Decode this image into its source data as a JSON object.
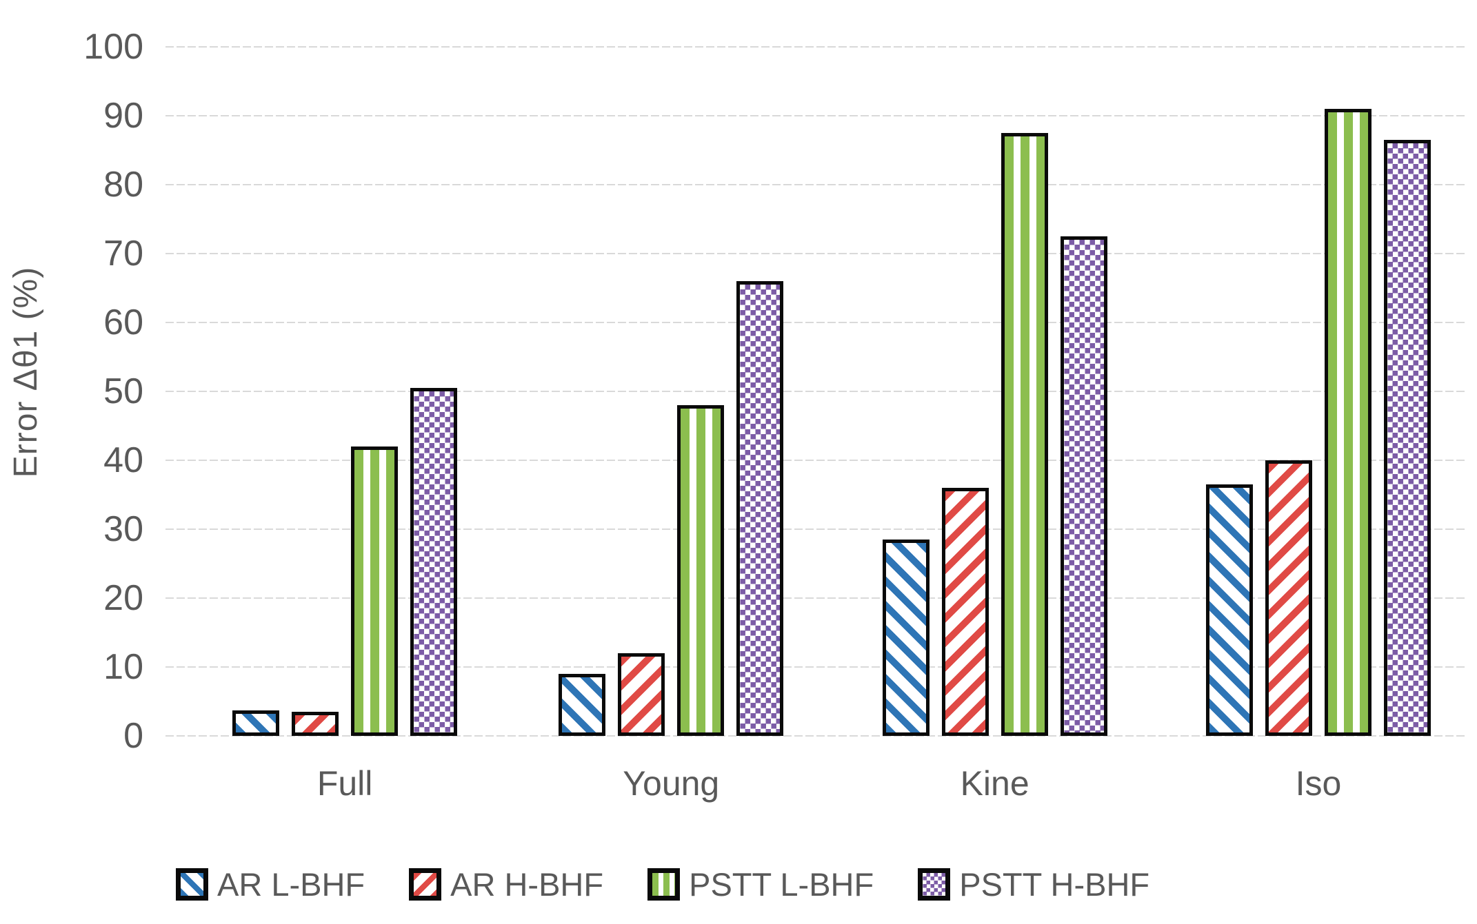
{
  "chart_data": {
    "type": "bar",
    "title": "",
    "ylabel": "Error Δθ1 (%)",
    "xlabel": "",
    "ylim": [
      0,
      100
    ],
    "ytick_step": 10,
    "yticks": [
      0,
      10,
      20,
      30,
      40,
      50,
      60,
      70,
      80,
      90,
      100
    ],
    "grid": "horizontal-dashed",
    "legend_position": "bottom",
    "categories": [
      "Full",
      "Young",
      "Kine",
      "Iso"
    ],
    "series": [
      {
        "name": "AR L-BHF",
        "pattern": "diagonal-down-hatch",
        "color": "#2E75B6",
        "values": [
          3.7,
          9,
          28.5,
          36.5
        ]
      },
      {
        "name": "AR H-BHF",
        "pattern": "diagonal-up-hatch",
        "color": "#E04A45",
        "values": [
          3.5,
          12,
          36,
          40
        ]
      },
      {
        "name": "PSTT L-BHF",
        "pattern": "vertical-stripes",
        "color": "#8CBE4F",
        "values": [
          42,
          48,
          87.5,
          91
        ]
      },
      {
        "name": "PSTT H-BHF",
        "pattern": "square-dots",
        "color": "#7C5CA6",
        "values": [
          50.5,
          66,
          72.5,
          86.5
        ]
      }
    ]
  },
  "styles": {
    "text_color": "#595959",
    "gridline_color": "#D9D9D9",
    "bar_border_color": "#0A0A0A",
    "background": "#FFFFFF"
  }
}
